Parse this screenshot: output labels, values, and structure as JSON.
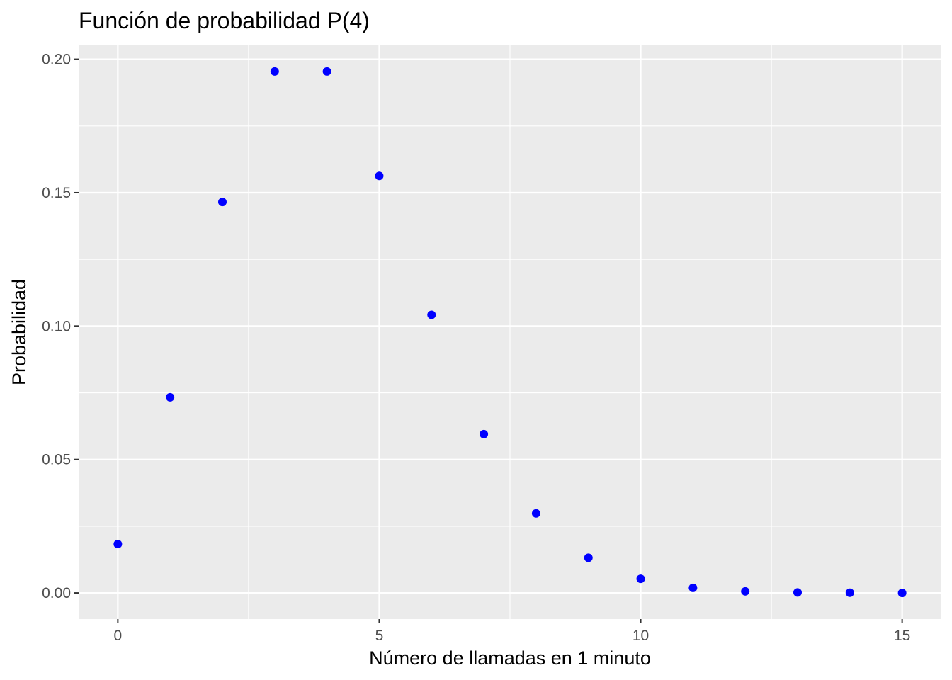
{
  "chart_data": {
    "type": "scatter",
    "title": "Función de probabilidad P(4)",
    "xlabel": "Número de llamadas en 1 minuto",
    "ylabel": "Probabilidad",
    "x": [
      0,
      1,
      2,
      3,
      4,
      5,
      6,
      7,
      8,
      9,
      10,
      11,
      12,
      13,
      14,
      15
    ],
    "y": [
      0.0183,
      0.0733,
      0.1465,
      0.1954,
      0.1954,
      0.1563,
      0.1042,
      0.0595,
      0.0298,
      0.0132,
      0.0053,
      0.0019,
      0.0006,
      0.0002,
      0.0001,
      0.0
    ],
    "xlim": [
      -0.75,
      15.75
    ],
    "ylim": [
      -0.0098,
      0.2052
    ],
    "x_ticks": [
      0,
      5,
      10,
      15
    ],
    "x_tick_labels": [
      "0",
      "5",
      "10",
      "15"
    ],
    "y_ticks": [
      0,
      0.05,
      0.1,
      0.15,
      0.2
    ],
    "y_tick_labels": [
      "0.00",
      "0.05",
      "0.10",
      "0.15",
      "0.20"
    ],
    "x_minor_ticks": [
      2.5,
      7.5,
      12.5
    ],
    "y_minor_ticks": [
      0.025,
      0.075,
      0.125,
      0.175
    ],
    "point_color": "#0000ff",
    "panel_background": "#ebebeb",
    "grid_color": "#ffffff",
    "grid": true,
    "legend": "none"
  }
}
